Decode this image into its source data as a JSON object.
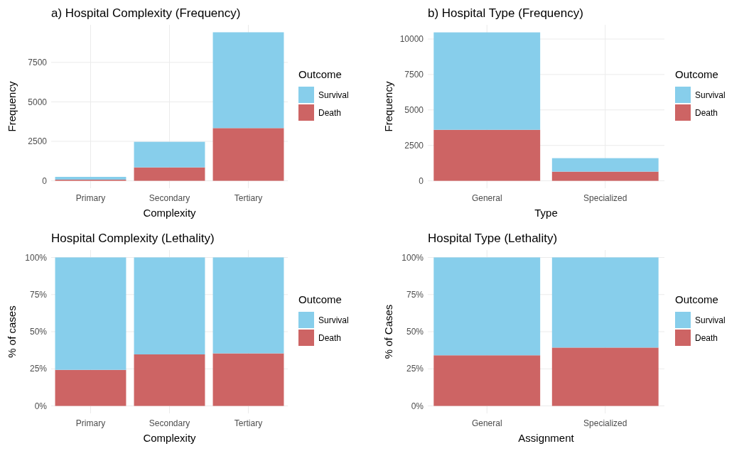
{
  "chart_data": [
    {
      "type": "bar",
      "title": "a) Hospital Complexity (Frequency)",
      "xlabel": "Complexity",
      "ylabel": "Frequency",
      "legend_title": "Outcome",
      "categories": [
        "Primary",
        "Secondary",
        "Tertiary"
      ],
      "stacked": true,
      "series": [
        {
          "name": "Death",
          "color": "#cd6464",
          "values": [
            70,
            850,
            3340
          ]
        },
        {
          "name": "Survival",
          "color": "#87ceeb",
          "values": [
            180,
            1620,
            6070
          ]
        }
      ],
      "ylim": [
        -470,
        9880
      ],
      "yticks": [
        0,
        2500,
        5000,
        7500
      ],
      "grid": true,
      "legend": "right"
    },
    {
      "type": "bar",
      "title": "b) Hospital Type (Frequency)",
      "xlabel": "Type",
      "ylabel": "Frequency",
      "legend_title": "Outcome",
      "categories": [
        "General",
        "Specialized"
      ],
      "stacked": true,
      "series": [
        {
          "name": "Death",
          "color": "#cd6464",
          "values": [
            3600,
            650
          ]
        },
        {
          "name": "Survival",
          "color": "#87ceeb",
          "values": [
            6870,
            950
          ]
        }
      ],
      "ylim": [
        -520,
        11000
      ],
      "yticks": [
        0,
        2500,
        5000,
        7500,
        10000
      ],
      "grid": true,
      "legend": "right"
    },
    {
      "type": "bar",
      "title": "Hospital Complexity (Lethality)",
      "xlabel": "Complexity",
      "ylabel": "% of cases",
      "legend_title": "Outcome",
      "categories": [
        "Primary",
        "Secondary",
        "Tertiary"
      ],
      "stacked": true,
      "series": [
        {
          "name": "Death",
          "color": "#cd6464",
          "values": [
            24.3,
            34.7,
            35.4
          ]
        },
        {
          "name": "Survival",
          "color": "#87ceeb",
          "values": [
            75.7,
            65.3,
            64.6
          ]
        }
      ],
      "ylim": [
        -5,
        105
      ],
      "yticks": [
        {
          "value": 0,
          "label": "0%"
        },
        {
          "value": 25,
          "label": "25%"
        },
        {
          "value": 50,
          "label": "50%"
        },
        {
          "value": 75,
          "label": "75%"
        },
        {
          "value": 100,
          "label": "100%"
        }
      ],
      "grid": true,
      "legend": "right"
    },
    {
      "type": "bar",
      "title": "Hospital Type (Lethality)",
      "xlabel": "Assignment",
      "ylabel": "% of Cases",
      "legend_title": "Outcome",
      "categories": [
        "General",
        "Specialized"
      ],
      "stacked": true,
      "series": [
        {
          "name": "Death",
          "color": "#cd6464",
          "values": [
            34.1,
            39.3
          ]
        },
        {
          "name": "Survival",
          "color": "#87ceeb",
          "values": [
            65.9,
            60.7
          ]
        }
      ],
      "ylim": [
        -5,
        105
      ],
      "yticks": [
        {
          "value": 0,
          "label": "0%"
        },
        {
          "value": 25,
          "label": "25%"
        },
        {
          "value": 50,
          "label": "50%"
        },
        {
          "value": 75,
          "label": "75%"
        },
        {
          "value": 100,
          "label": "100%"
        }
      ],
      "grid": true,
      "legend": "right"
    }
  ]
}
